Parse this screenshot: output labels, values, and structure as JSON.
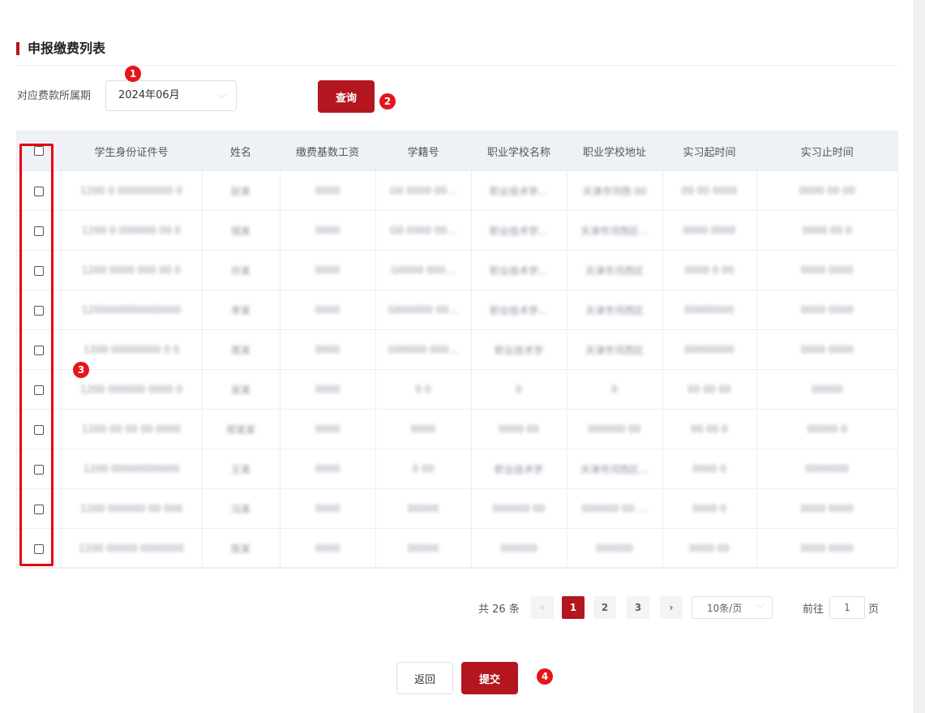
{
  "section": {
    "title": "申报缴费列表"
  },
  "filter": {
    "label": "对应费款所属期",
    "period_value": "2024年06月",
    "query_label": "查询"
  },
  "markers": [
    "1",
    "2",
    "3",
    "4"
  ],
  "table": {
    "columns": [
      "学生身份证件号",
      "姓名",
      "缴费基数工资",
      "学籍号",
      "职业学校名称",
      "职业学校地址",
      "实习起时间",
      "实习止时间"
    ],
    "rows": [
      [
        "1200 0 000000000 0",
        "赵某",
        "0000",
        "G0 0000 00…",
        "职业技术学…",
        "天津市河西 00",
        "00 00 0000",
        "0000 00 00"
      ],
      [
        "1200 0 000000 00 0",
        "钱某",
        "0000",
        "G0 0000 00…",
        "职业技术学…",
        "天津市河西区…",
        "0000 0000",
        "0000 00 0"
      ],
      [
        "1200 0000 000 00 0",
        "孙某",
        "0000",
        "G0000 000…",
        "职业技术学…",
        "天津市河西区",
        "0000 0 00",
        "0000 0000"
      ],
      [
        "1200000000000000",
        "李某",
        "0000",
        "G000000 00…",
        "职业技术学…",
        "天津市河西区",
        "00000000",
        "0000 0000"
      ],
      [
        "1200 00000000 0 0",
        "周某",
        "0000",
        "G00000 000…",
        "职业技术学",
        "天津市河西区",
        "00000000",
        "0000 0000"
      ],
      [
        "1200 000000 0000 0",
        "吴某",
        "0000",
        "0 0",
        "0",
        "0",
        "00 00 00",
        "00000"
      ],
      [
        "1200 00 00 00 0000",
        "郑某某",
        "0000",
        "0000",
        "0000 00",
        "000000 00",
        "00 00 0",
        "00000 0"
      ],
      [
        "1200 00000000000",
        "王某",
        "0000",
        "0 00",
        "职业技术学",
        "天津市河西区…",
        "0000 0",
        "0000000"
      ],
      [
        "1200 000000 00 000",
        "冯某",
        "0000",
        "00000",
        "000000 00",
        "000000 00 …",
        "0000 0",
        "0000 0000"
      ],
      [
        "1200 00000 0000000",
        "陈某",
        "0000",
        "00000",
        "000000",
        "000000",
        "0000 00",
        "0000 0000"
      ]
    ]
  },
  "pagination": {
    "total_text": "共 26 条",
    "pages": [
      "1",
      "2",
      "3"
    ],
    "prev_icon": "‹",
    "next_icon": "›",
    "page_size": "10条/页",
    "goto_label": "前往",
    "goto_value": "1",
    "goto_suffix": "页"
  },
  "actions": {
    "back_label": "返回",
    "submit_label": "提交"
  },
  "colors": {
    "accent": "#b3161f",
    "marker": "#e6141b",
    "highlight": "#e60012",
    "header_bg": "#eef2f7"
  }
}
